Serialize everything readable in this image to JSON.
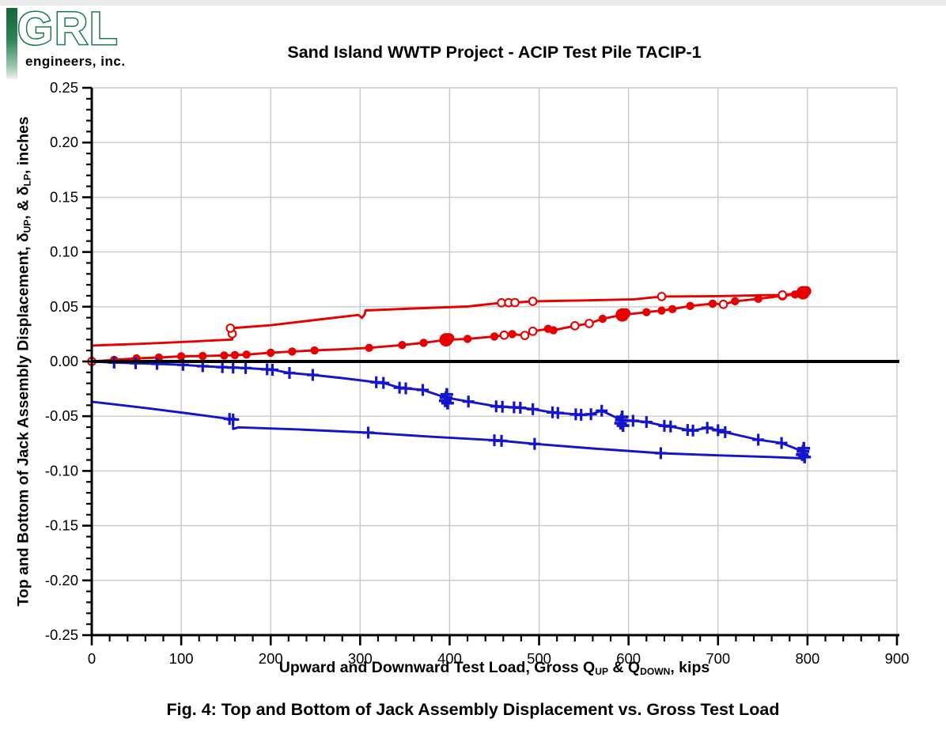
{
  "page": {
    "logo": {
      "text": "GRL",
      "subtext": "engineers, inc.",
      "green": "#1c7a4c"
    },
    "title": "Sand Island WWTP Project - ACIP Test Pile TACIP-1",
    "caption": "Fig. 4: Top and Bottom of Jack Assembly Displacement vs. Gross Test Load"
  },
  "chart_data": {
    "type": "line",
    "title": "Sand Island WWTP Project - ACIP Test Pile TACIP-1",
    "xlabel_parts": [
      {
        "t": "Upward and Downward Test Load, Gross Q"
      },
      {
        "t": "UP",
        "sub": true
      },
      {
        "t": " & Q"
      },
      {
        "t": "DOWN",
        "sub": true
      },
      {
        "t": ", kips"
      }
    ],
    "ylabel_parts": [
      {
        "t": "Top and Bottom of Jack Assembly Displacement, δ"
      },
      {
        "t": "UP",
        "sub": true
      },
      {
        "t": ", & δ"
      },
      {
        "t": "LP",
        "sub": true
      },
      {
        "t": ", inches"
      }
    ],
    "xlim": [
      0,
      900
    ],
    "ylim": [
      -0.25,
      0.25
    ],
    "grid": true,
    "legend": "none",
    "xticks": [
      {
        "v": 0,
        "label": "0"
      },
      {
        "v": 100,
        "label": "100"
      },
      {
        "v": 200,
        "label": "200"
      },
      {
        "v": 300,
        "label": "300"
      },
      {
        "v": 400,
        "label": "400"
      },
      {
        "v": 500,
        "label": "500"
      },
      {
        "v": 600,
        "label": "600"
      },
      {
        "v": 700,
        "label": "700"
      },
      {
        "v": 800,
        "label": "800"
      },
      {
        "v": 900,
        "label": "900"
      }
    ],
    "yticks": [
      {
        "v": 0.25,
        "label": "0.25"
      },
      {
        "v": 0.2,
        "label": "0.20"
      },
      {
        "v": 0.15,
        "label": "0.15"
      },
      {
        "v": 0.1,
        "label": "0.10"
      },
      {
        "v": 0.05,
        "label": "0.05"
      },
      {
        "v": 0.0,
        "label": "0.00"
      },
      {
        "v": -0.05,
        "label": "-0.05"
      },
      {
        "v": -0.1,
        "label": "-0.10"
      },
      {
        "v": -0.15,
        "label": "-0.15"
      },
      {
        "v": -0.2,
        "label": "-0.20"
      },
      {
        "v": -0.25,
        "label": "-0.25"
      }
    ],
    "xticks_minor_step": 20,
    "yticks_minor_step": 0.01,
    "colors": {
      "up": "#e60000",
      "down": "#1414cc",
      "grid": "#c8c8c8",
      "axis": "#000000"
    },
    "marker_codes": {
      "f": "filled circle",
      "o": "open circle",
      "+": "plus",
      "F": "large filled cluster",
      "P": "large plus cluster",
      "": "line vertex only"
    },
    "series": [
      {
        "name": "delta_up_loading",
        "color": "up",
        "points": [
          [
            0,
            0.0,
            "o"
          ],
          [
            25,
            0.0015,
            "f"
          ],
          [
            50,
            0.0028,
            "f"
          ],
          [
            75,
            0.0036,
            "f"
          ],
          [
            100,
            0.0047,
            "f"
          ],
          [
            124,
            0.005,
            "f"
          ],
          [
            148,
            0.0055,
            "f"
          ],
          [
            160,
            0.0058,
            "f"
          ],
          [
            173,
            0.0063,
            "f"
          ],
          [
            200,
            0.008,
            "f"
          ],
          [
            224,
            0.0091,
            "f"
          ],
          [
            249,
            0.0101,
            "f"
          ],
          [
            280,
            0.0111,
            ""
          ],
          [
            310,
            0.0124,
            "f"
          ],
          [
            347,
            0.015,
            "f"
          ],
          [
            371,
            0.017,
            "f"
          ],
          [
            396,
            0.0198,
            "F"
          ],
          [
            420,
            0.0206,
            "f"
          ],
          [
            450,
            0.0228,
            "f"
          ],
          [
            461,
            0.024,
            "o"
          ],
          [
            470,
            0.025,
            "f"
          ],
          [
            484,
            0.0238,
            "o"
          ],
          [
            493,
            0.0276,
            "o"
          ],
          [
            510,
            0.0298,
            "f"
          ],
          [
            516,
            0.0285,
            "f"
          ],
          [
            540,
            0.0326,
            "o"
          ],
          [
            556,
            0.0347,
            "o"
          ],
          [
            571,
            0.039,
            "f"
          ],
          [
            593,
            0.0425,
            "F"
          ],
          [
            620,
            0.045,
            "f"
          ],
          [
            637,
            0.0465,
            "f"
          ],
          [
            649,
            0.0478,
            "f"
          ],
          [
            669,
            0.0507,
            "f"
          ],
          [
            694,
            0.0528,
            "f"
          ],
          [
            706,
            0.0522,
            "o"
          ],
          [
            719,
            0.055,
            "f"
          ],
          [
            745,
            0.0572,
            "f"
          ],
          [
            772,
            0.06,
            "o"
          ],
          [
            786,
            0.0612,
            "f"
          ],
          [
            795,
            0.0628,
            "F"
          ]
        ]
      },
      {
        "name": "delta_up_unloading",
        "color": "up",
        "points": [
          [
            0,
            0.0145,
            ""
          ],
          [
            55,
            0.0161,
            ""
          ],
          [
            110,
            0.0181,
            ""
          ],
          [
            157,
            0.02,
            ""
          ],
          [
            157,
            0.0253,
            "o"
          ],
          [
            155,
            0.0304,
            "o"
          ],
          [
            161,
            0.0307,
            ""
          ],
          [
            200,
            0.0331,
            ""
          ],
          [
            250,
            0.0379,
            ""
          ],
          [
            298,
            0.0425,
            ""
          ],
          [
            302,
            0.0398,
            ""
          ],
          [
            305,
            0.043,
            ""
          ],
          [
            306,
            0.0466,
            ""
          ],
          [
            360,
            0.0484,
            ""
          ],
          [
            420,
            0.0502,
            ""
          ],
          [
            458,
            0.0536,
            "o"
          ],
          [
            466,
            0.0537,
            "o"
          ],
          [
            473,
            0.0538,
            "o"
          ],
          [
            493,
            0.0549,
            "o"
          ],
          [
            550,
            0.0558,
            ""
          ],
          [
            606,
            0.0568,
            ""
          ],
          [
            637,
            0.0593,
            "o"
          ],
          [
            700,
            0.0597,
            ""
          ],
          [
            747,
            0.0605,
            ""
          ],
          [
            772,
            0.0608,
            "o"
          ],
          [
            795,
            0.0628,
            ""
          ]
        ]
      },
      {
        "name": "delta_lp_loading",
        "color": "down",
        "points": [
          [
            0,
            0.0,
            ""
          ],
          [
            25,
            -0.001,
            "+"
          ],
          [
            49,
            -0.0016,
            "+"
          ],
          [
            73,
            -0.0022,
            "+"
          ],
          [
            102,
            -0.0031,
            "+"
          ],
          [
            124,
            -0.0043,
            "+"
          ],
          [
            146,
            -0.0052,
            "+"
          ],
          [
            158,
            -0.0056,
            "+"
          ],
          [
            172,
            -0.006,
            "+"
          ],
          [
            196,
            -0.0072,
            "+"
          ],
          [
            202,
            -0.0076,
            "+"
          ],
          [
            221,
            -0.0105,
            "+"
          ],
          [
            247,
            -0.0123,
            "+"
          ],
          [
            280,
            -0.0152,
            ""
          ],
          [
            318,
            -0.019,
            "+"
          ],
          [
            326,
            -0.0196,
            "+"
          ],
          [
            344,
            -0.024,
            "+"
          ],
          [
            351,
            -0.0246,
            "+"
          ],
          [
            370,
            -0.026,
            "+"
          ],
          [
            396,
            -0.033,
            "P"
          ],
          [
            421,
            -0.0366,
            "+"
          ],
          [
            452,
            -0.041,
            "+"
          ],
          [
            459,
            -0.0414,
            "+"
          ],
          [
            472,
            -0.0419,
            "+"
          ],
          [
            479,
            -0.0423,
            "+"
          ],
          [
            493,
            -0.0436,
            "+"
          ],
          [
            515,
            -0.0465,
            "+"
          ],
          [
            521,
            -0.047,
            "+"
          ],
          [
            541,
            -0.0483,
            "+"
          ],
          [
            547,
            -0.0487,
            "+"
          ],
          [
            558,
            -0.0482,
            "+"
          ],
          [
            570,
            -0.045,
            "+"
          ],
          [
            592,
            -0.0535,
            "P"
          ],
          [
            605,
            -0.0542,
            "+"
          ],
          [
            620,
            -0.0553,
            "+"
          ],
          [
            640,
            -0.0588,
            "+"
          ],
          [
            647,
            -0.0594,
            "+"
          ],
          [
            666,
            -0.0626,
            "+"
          ],
          [
            672,
            -0.0631,
            "+"
          ],
          [
            688,
            -0.0606,
            "+"
          ],
          [
            700,
            -0.0628,
            "+"
          ],
          [
            708,
            -0.0646,
            "+"
          ],
          [
            745,
            -0.0715,
            "+"
          ],
          [
            771,
            -0.0745,
            "+"
          ],
          [
            795,
            -0.0822,
            "P"
          ]
        ]
      },
      {
        "name": "delta_lp_unloading",
        "color": "down",
        "points": [
          [
            0,
            -0.0368,
            ""
          ],
          [
            60,
            -0.0425,
            ""
          ],
          [
            110,
            -0.0477,
            ""
          ],
          [
            154,
            -0.0525,
            "+"
          ],
          [
            158,
            -0.053,
            "+"
          ],
          [
            158,
            -0.0616,
            ""
          ],
          [
            164,
            -0.0602,
            ""
          ],
          [
            234,
            -0.0622,
            ""
          ],
          [
            309,
            -0.065,
            "+"
          ],
          [
            380,
            -0.0688,
            ""
          ],
          [
            450,
            -0.072,
            "+"
          ],
          [
            458,
            -0.0725,
            "+"
          ],
          [
            495,
            -0.0753,
            "+"
          ],
          [
            560,
            -0.0795,
            ""
          ],
          [
            636,
            -0.0838,
            "+"
          ],
          [
            700,
            -0.0858,
            ""
          ],
          [
            760,
            -0.0873,
            ""
          ],
          [
            795,
            -0.0885,
            ""
          ]
        ]
      }
    ]
  }
}
